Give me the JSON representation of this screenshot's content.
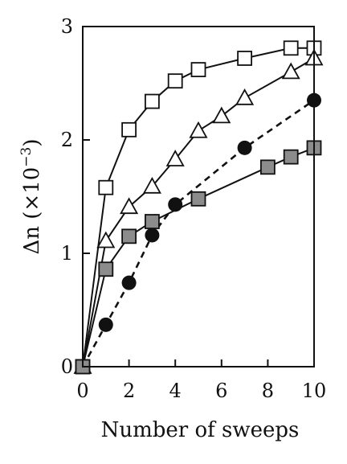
{
  "chart_data": {
    "type": "line",
    "xlabel": "Number of sweeps",
    "ylabel_main": "Δn",
    "ylabel_unit_prefix": "(×10",
    "ylabel_unit_exp": "−3",
    "ylabel_unit_suffix": ")",
    "xlim": [
      0,
      10
    ],
    "ylim": [
      0,
      3
    ],
    "xticks": [
      0,
      2,
      4,
      6,
      8,
      10
    ],
    "yticks": [
      0,
      1,
      2,
      3
    ],
    "grid": false,
    "series": [
      {
        "marker": "open-square",
        "line": "solid",
        "x": [
          0,
          1,
          2,
          3,
          4,
          5,
          7,
          9,
          10
        ],
        "y": [
          0,
          1.58,
          2.09,
          2.34,
          2.52,
          2.62,
          2.72,
          2.81,
          2.81
        ]
      },
      {
        "marker": "open-triangle",
        "line": "solid",
        "x": [
          0,
          1,
          2,
          3,
          4,
          5,
          6,
          7,
          9,
          10
        ],
        "y": [
          0,
          1.11,
          1.41,
          1.59,
          1.83,
          2.08,
          2.21,
          2.37,
          2.6,
          2.72
        ]
      },
      {
        "marker": "filled-circle",
        "line": "dashed",
        "x": [
          0,
          1,
          2,
          3,
          4,
          7,
          10
        ],
        "y": [
          0,
          0.37,
          0.74,
          1.16,
          1.43,
          1.93,
          2.35
        ]
      },
      {
        "marker": "gray-square",
        "line": "solid",
        "x": [
          0,
          1,
          2,
          3,
          5,
          8,
          9,
          10
        ],
        "y": [
          0,
          0.86,
          1.15,
          1.28,
          1.48,
          1.76,
          1.85,
          1.93
        ]
      }
    ],
    "colors": {
      "gray_fill": "#8c8c8c",
      "black": "#111111",
      "white": "#ffffff"
    }
  }
}
